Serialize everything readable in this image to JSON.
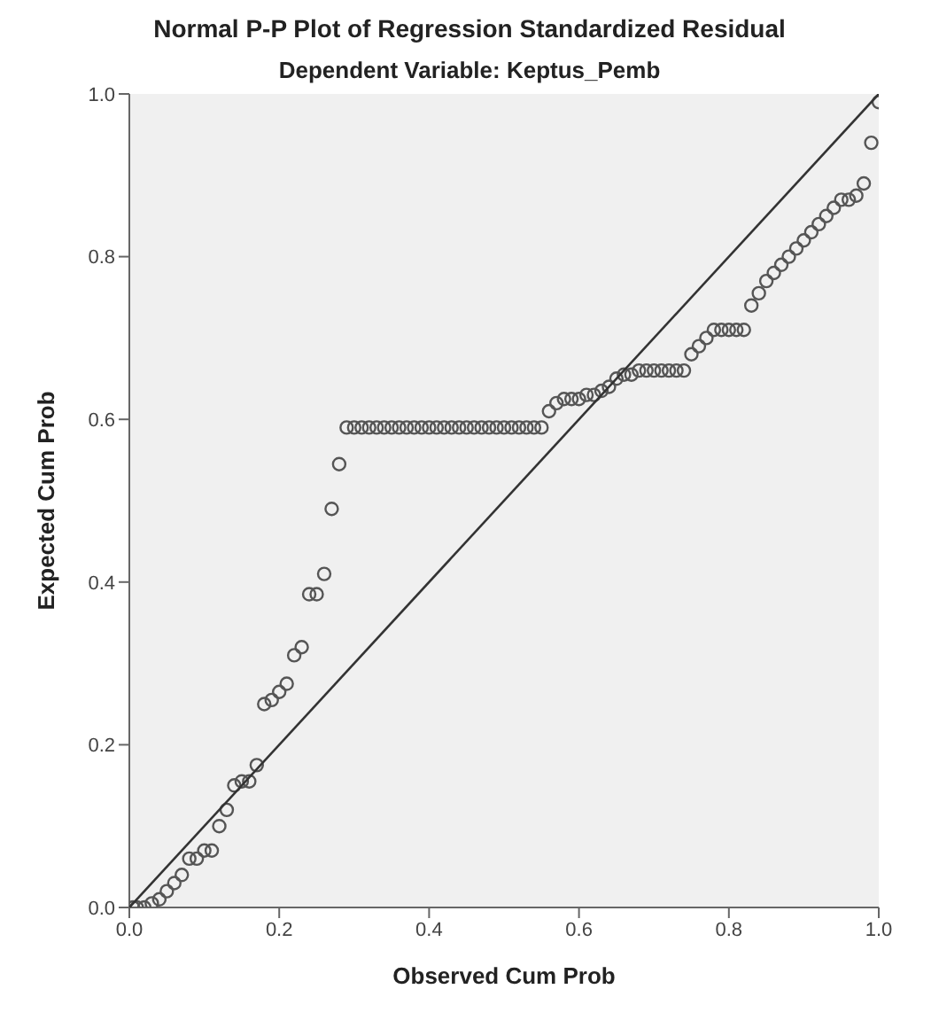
{
  "chart_data": {
    "type": "scatter",
    "title": "Normal P-P Plot of Regression Standardized Residual",
    "subtitle": "Dependent Variable: Keptus_Pemb",
    "xlabel": "Observed Cum Prob",
    "ylabel": "Expected Cum Prob",
    "xlim": [
      0,
      1
    ],
    "ylim": [
      0,
      1
    ],
    "xticks": [
      {
        "value": 0,
        "label": "0.0"
      },
      {
        "value": 0.2,
        "label": "0.2"
      },
      {
        "value": 0.4,
        "label": "0.4"
      },
      {
        "value": 0.6,
        "label": "0.6"
      },
      {
        "value": 0.8,
        "label": "0.8"
      },
      {
        "value": 1,
        "label": "1.0"
      }
    ],
    "yticks": [
      {
        "value": 0,
        "label": "0.0"
      },
      {
        "value": 0.2,
        "label": "0.2"
      },
      {
        "value": 0.4,
        "label": "0.4"
      },
      {
        "value": 0.6,
        "label": "0.6"
      },
      {
        "value": 0.8,
        "label": "0.8"
      },
      {
        "value": 1,
        "label": "1.0"
      }
    ],
    "grid": false,
    "marker": "circle",
    "series": [
      {
        "color": "#555555",
        "x": [
          0.005,
          0.01,
          0.02,
          0.03,
          0.04,
          0.05,
          0.06,
          0.07,
          0.08,
          0.09,
          0.1,
          0.11,
          0.12,
          0.13,
          0.14,
          0.15,
          0.16,
          0.17,
          0.18,
          0.19,
          0.2,
          0.21,
          0.22,
          0.23,
          0.24,
          0.25,
          0.26,
          0.27,
          0.28,
          0.29,
          0.3,
          0.31,
          0.32,
          0.33,
          0.34,
          0.35,
          0.36,
          0.37,
          0.38,
          0.39,
          0.4,
          0.41,
          0.42,
          0.43,
          0.44,
          0.45,
          0.46,
          0.47,
          0.48,
          0.49,
          0.5,
          0.51,
          0.52,
          0.53,
          0.54,
          0.55,
          0.56,
          0.57,
          0.58,
          0.59,
          0.6,
          0.61,
          0.62,
          0.63,
          0.64,
          0.65,
          0.66,
          0.67,
          0.68,
          0.69,
          0.7,
          0.71,
          0.72,
          0.73,
          0.74,
          0.75,
          0.76,
          0.77,
          0.78,
          0.79,
          0.8,
          0.81,
          0.82,
          0.83,
          0.84,
          0.85,
          0.86,
          0.87,
          0.88,
          0.89,
          0.9,
          0.91,
          0.92,
          0.93,
          0.94,
          0.95,
          0.96,
          0.97,
          0.98,
          0.99,
          1.0
        ],
        "values": [
          0.0,
          0.0,
          0.0,
          0.005,
          0.01,
          0.02,
          0.03,
          0.04,
          0.06,
          0.06,
          0.07,
          0.07,
          0.1,
          0.12,
          0.15,
          0.155,
          0.155,
          0.175,
          0.25,
          0.255,
          0.265,
          0.275,
          0.31,
          0.32,
          0.385,
          0.385,
          0.41,
          0.49,
          0.545,
          0.59,
          0.59,
          0.59,
          0.59,
          0.59,
          0.59,
          0.59,
          0.59,
          0.59,
          0.59,
          0.59,
          0.59,
          0.59,
          0.59,
          0.59,
          0.59,
          0.59,
          0.59,
          0.59,
          0.59,
          0.59,
          0.59,
          0.59,
          0.59,
          0.59,
          0.59,
          0.59,
          0.61,
          0.62,
          0.625,
          0.625,
          0.625,
          0.63,
          0.63,
          0.635,
          0.64,
          0.65,
          0.655,
          0.655,
          0.66,
          0.66,
          0.66,
          0.66,
          0.66,
          0.66,
          0.66,
          0.68,
          0.69,
          0.7,
          0.71,
          0.71,
          0.71,
          0.71,
          0.71,
          0.74,
          0.755,
          0.77,
          0.78,
          0.79,
          0.8,
          0.81,
          0.82,
          0.83,
          0.84,
          0.85,
          0.86,
          0.87,
          0.87,
          0.875,
          0.89,
          0.94,
          0.99
        ]
      },
      {
        "type": "line",
        "marker": "none",
        "color": "#333333",
        "x": [
          0,
          1
        ],
        "values": [
          0,
          1
        ]
      }
    ]
  }
}
